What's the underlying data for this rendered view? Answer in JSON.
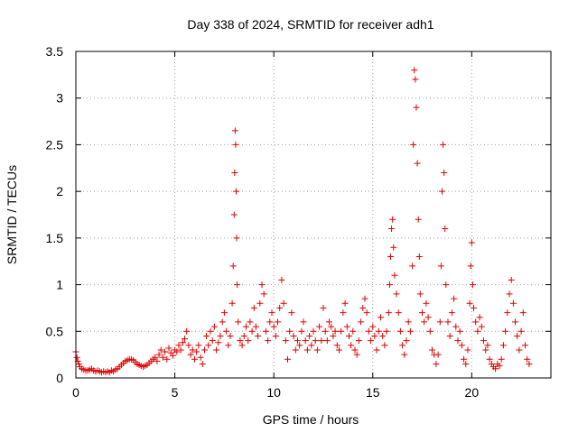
{
  "chart_data": {
    "type": "scatter",
    "title": "Day 338 of 2024, SRMTID for receiver adh1",
    "xlabel": "GPS time / hours",
    "ylabel": "SRMTID / TECUs",
    "xlim": [
      0,
      24
    ],
    "ylim": [
      0,
      3.5
    ],
    "xticks": [
      0,
      5,
      10,
      15,
      20
    ],
    "yticks": [
      0,
      0.5,
      1,
      1.5,
      2,
      2.5,
      3,
      3.5
    ],
    "xtick_labels": [
      "0",
      "5",
      "10",
      "15",
      "20"
    ],
    "ytick_labels": [
      "0",
      "0.5",
      "1",
      "1.5",
      "2",
      "2.5",
      "3",
      "3.5"
    ],
    "grid": true,
    "marker": "+",
    "series": [
      {
        "name": "adh1",
        "color": "#e00000",
        "points": [
          [
            0.0,
            0.28
          ],
          [
            0.05,
            0.22
          ],
          [
            0.1,
            0.18
          ],
          [
            0.15,
            0.15
          ],
          [
            0.2,
            0.12
          ],
          [
            0.3,
            0.1
          ],
          [
            0.4,
            0.09
          ],
          [
            0.5,
            0.08
          ],
          [
            0.6,
            0.08
          ],
          [
            0.7,
            0.09
          ],
          [
            0.8,
            0.1
          ],
          [
            0.9,
            0.08
          ],
          [
            1.0,
            0.07
          ],
          [
            1.1,
            0.08
          ],
          [
            1.2,
            0.07
          ],
          [
            1.3,
            0.06
          ],
          [
            1.4,
            0.07
          ],
          [
            1.5,
            0.06
          ],
          [
            1.6,
            0.07
          ],
          [
            1.7,
            0.06
          ],
          [
            1.8,
            0.08
          ],
          [
            1.9,
            0.07
          ],
          [
            2.0,
            0.09
          ],
          [
            2.1,
            0.1
          ],
          [
            2.2,
            0.12
          ],
          [
            2.3,
            0.14
          ],
          [
            2.4,
            0.16
          ],
          [
            2.5,
            0.18
          ],
          [
            2.6,
            0.19
          ],
          [
            2.7,
            0.2
          ],
          [
            2.8,
            0.2
          ],
          [
            2.9,
            0.19
          ],
          [
            3.0,
            0.17
          ],
          [
            3.1,
            0.15
          ],
          [
            3.2,
            0.14
          ],
          [
            3.3,
            0.13
          ],
          [
            3.4,
            0.12
          ],
          [
            3.5,
            0.13
          ],
          [
            3.6,
            0.14
          ],
          [
            3.7,
            0.16
          ],
          [
            3.8,
            0.18
          ],
          [
            3.9,
            0.2
          ],
          [
            4.0,
            0.22
          ],
          [
            4.1,
            0.18
          ],
          [
            4.2,
            0.25
          ],
          [
            4.3,
            0.3
          ],
          [
            4.4,
            0.22
          ],
          [
            4.5,
            0.28
          ],
          [
            4.6,
            0.2
          ],
          [
            4.7,
            0.32
          ],
          [
            4.8,
            0.27
          ],
          [
            4.9,
            0.24
          ],
          [
            5.0,
            0.3
          ],
          [
            5.1,
            0.28
          ],
          [
            5.2,
            0.35
          ],
          [
            5.3,
            0.3
          ],
          [
            5.4,
            0.38
          ],
          [
            5.5,
            0.42
          ],
          [
            5.6,
            0.5
          ],
          [
            5.7,
            0.35
          ],
          [
            5.8,
            0.25
          ],
          [
            5.9,
            0.3
          ],
          [
            6.0,
            0.2
          ],
          [
            6.1,
            0.28
          ],
          [
            6.2,
            0.35
          ],
          [
            6.3,
            0.22
          ],
          [
            6.4,
            0.15
          ],
          [
            6.5,
            0.3
          ],
          [
            6.6,
            0.45
          ],
          [
            6.7,
            0.35
          ],
          [
            6.8,
            0.5
          ],
          [
            6.9,
            0.4
          ],
          [
            7.0,
            0.55
          ],
          [
            7.1,
            0.3
          ],
          [
            7.2,
            0.38
          ],
          [
            7.3,
            0.45
          ],
          [
            7.4,
            0.6
          ],
          [
            7.5,
            0.7
          ],
          [
            7.6,
            0.5
          ],
          [
            7.7,
            0.35
          ],
          [
            7.8,
            0.45
          ],
          [
            7.9,
            0.8
          ],
          [
            7.95,
            1.2
          ],
          [
            8.0,
            1.75
          ],
          [
            8.02,
            2.2
          ],
          [
            8.05,
            2.65
          ],
          [
            8.07,
            2.5
          ],
          [
            8.1,
            2.0
          ],
          [
            8.12,
            1.5
          ],
          [
            8.15,
            1.0
          ],
          [
            8.2,
            0.6
          ],
          [
            8.3,
            0.4
          ],
          [
            8.4,
            0.35
          ],
          [
            8.5,
            0.45
          ],
          [
            8.6,
            0.55
          ],
          [
            8.7,
            0.4
          ],
          [
            8.8,
            0.6
          ],
          [
            8.9,
            0.5
          ],
          [
            9.0,
            0.75
          ],
          [
            9.1,
            0.55
          ],
          [
            9.2,
            0.45
          ],
          [
            9.3,
            0.8
          ],
          [
            9.4,
            1.0
          ],
          [
            9.5,
            0.9
          ],
          [
            9.6,
            0.5
          ],
          [
            9.7,
            0.4
          ],
          [
            9.8,
            0.6
          ],
          [
            9.9,
            0.7
          ],
          [
            10.0,
            0.55
          ],
          [
            10.1,
            0.45
          ],
          [
            10.2,
            0.6
          ],
          [
            10.3,
            0.75
          ],
          [
            10.4,
            1.05
          ],
          [
            10.5,
            0.8
          ],
          [
            10.6,
            0.4
          ],
          [
            10.7,
            0.2
          ],
          [
            10.8,
            0.5
          ],
          [
            10.9,
            0.7
          ],
          [
            11.0,
            0.45
          ],
          [
            11.1,
            0.3
          ],
          [
            11.2,
            0.4
          ],
          [
            11.3,
            0.35
          ],
          [
            11.4,
            0.5
          ],
          [
            11.5,
            0.6
          ],
          [
            11.6,
            0.4
          ],
          [
            11.7,
            0.3
          ],
          [
            11.8,
            0.45
          ],
          [
            11.9,
            0.35
          ],
          [
            12.0,
            0.5
          ],
          [
            12.1,
            0.4
          ],
          [
            12.2,
            0.3
          ],
          [
            12.3,
            0.55
          ],
          [
            12.4,
            0.4
          ],
          [
            12.5,
            0.75
          ],
          [
            12.6,
            0.5
          ],
          [
            12.7,
            0.4
          ],
          [
            12.8,
            0.6
          ],
          [
            12.9,
            0.55
          ],
          [
            13.0,
            0.45
          ],
          [
            13.1,
            0.5
          ],
          [
            13.2,
            0.35
          ],
          [
            13.3,
            0.3
          ],
          [
            13.4,
            0.5
          ],
          [
            13.5,
            0.7
          ],
          [
            13.6,
            0.8
          ],
          [
            13.7,
            0.55
          ],
          [
            13.8,
            0.45
          ],
          [
            13.9,
            0.35
          ],
          [
            14.0,
            0.5
          ],
          [
            14.1,
            0.3
          ],
          [
            14.2,
            0.25
          ],
          [
            14.3,
            0.4
          ],
          [
            14.4,
            0.6
          ],
          [
            14.5,
            0.75
          ],
          [
            14.6,
            0.85
          ],
          [
            14.7,
            0.7
          ],
          [
            14.8,
            0.5
          ],
          [
            14.9,
            0.4
          ],
          [
            15.0,
            0.55
          ],
          [
            15.1,
            0.45
          ],
          [
            15.2,
            0.3
          ],
          [
            15.3,
            0.5
          ],
          [
            15.4,
            0.65
          ],
          [
            15.5,
            0.45
          ],
          [
            15.6,
            0.35
          ],
          [
            15.7,
            0.5
          ],
          [
            15.8,
            0.7
          ],
          [
            15.85,
            1.0
          ],
          [
            15.9,
            1.3
          ],
          [
            15.95,
            1.6
          ],
          [
            16.0,
            1.7
          ],
          [
            16.05,
            1.4
          ],
          [
            16.1,
            1.1
          ],
          [
            16.2,
            0.9
          ],
          [
            16.3,
            0.7
          ],
          [
            16.4,
            0.5
          ],
          [
            16.5,
            0.35
          ],
          [
            16.6,
            0.25
          ],
          [
            16.7,
            0.4
          ],
          [
            16.8,
            0.6
          ],
          [
            16.9,
            0.5
          ],
          [
            17.0,
            1.2
          ],
          [
            17.05,
            2.5
          ],
          [
            17.1,
            3.3
          ],
          [
            17.15,
            3.2
          ],
          [
            17.2,
            2.9
          ],
          [
            17.25,
            2.3
          ],
          [
            17.3,
            1.7
          ],
          [
            17.35,
            1.3
          ],
          [
            17.4,
            0.9
          ],
          [
            17.5,
            0.7
          ],
          [
            17.6,
            0.6
          ],
          [
            17.7,
            0.8
          ],
          [
            17.8,
            0.65
          ],
          [
            17.9,
            0.5
          ],
          [
            18.0,
            0.3
          ],
          [
            18.1,
            0.25
          ],
          [
            18.2,
            0.15
          ],
          [
            18.3,
            0.25
          ],
          [
            18.4,
            0.6
          ],
          [
            18.45,
            1.2
          ],
          [
            18.5,
            2.0
          ],
          [
            18.55,
            2.5
          ],
          [
            18.6,
            2.2
          ],
          [
            18.65,
            1.6
          ],
          [
            18.7,
            1.0
          ],
          [
            18.8,
            0.6
          ],
          [
            18.9,
            0.45
          ],
          [
            19.0,
            0.7
          ],
          [
            19.1,
            0.85
          ],
          [
            19.2,
            0.55
          ],
          [
            19.3,
            0.4
          ],
          [
            19.4,
            0.5
          ],
          [
            19.5,
            0.35
          ],
          [
            19.6,
            0.2
          ],
          [
            19.7,
            0.15
          ],
          [
            19.8,
            0.3
          ],
          [
            19.9,
            0.8
          ],
          [
            19.95,
            1.2
          ],
          [
            20.0,
            1.45
          ],
          [
            20.05,
            1.0
          ],
          [
            20.1,
            0.75
          ],
          [
            20.2,
            0.6
          ],
          [
            20.3,
            0.5
          ],
          [
            20.4,
            0.65
          ],
          [
            20.5,
            0.55
          ],
          [
            20.6,
            0.4
          ],
          [
            20.7,
            0.3
          ],
          [
            20.8,
            0.35
          ],
          [
            20.9,
            0.2
          ],
          [
            21.0,
            0.15
          ],
          [
            21.1,
            0.12
          ],
          [
            21.2,
            0.1
          ],
          [
            21.3,
            0.15
          ],
          [
            21.4,
            0.13
          ],
          [
            21.5,
            0.2
          ],
          [
            21.6,
            0.35
          ],
          [
            21.7,
            0.5
          ],
          [
            21.8,
            0.7
          ],
          [
            21.9,
            0.9
          ],
          [
            22.0,
            1.05
          ],
          [
            22.1,
            0.8
          ],
          [
            22.2,
            0.6
          ],
          [
            22.3,
            0.45
          ],
          [
            22.4,
            0.3
          ],
          [
            22.5,
            0.5
          ],
          [
            22.6,
            0.7
          ],
          [
            22.7,
            0.35
          ],
          [
            22.8,
            0.2
          ],
          [
            22.9,
            0.15
          ]
        ]
      }
    ]
  }
}
